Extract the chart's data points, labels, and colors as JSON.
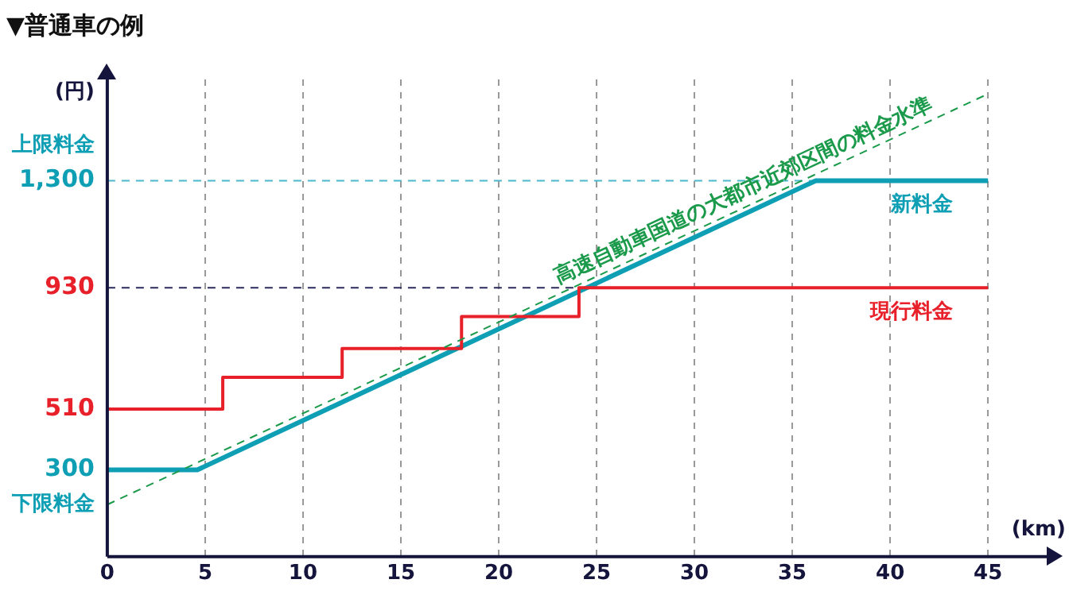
{
  "chart_data": {
    "type": "line",
    "title": "▼普通車の例",
    "xlabel": "(km)",
    "ylabel": "(円)",
    "xlim": [
      0,
      48
    ],
    "xticks": [
      0,
      5,
      10,
      15,
      20,
      25,
      30,
      35,
      40,
      45
    ],
    "ylim": [
      0,
      1650
    ],
    "yticks": [
      300,
      510,
      930,
      {
        "value": 1300,
        "label": "1,300"
      }
    ],
    "grid": "x",
    "legend": false,
    "marker": "none",
    "series": [
      {
        "name": "高速自動車国道の大都市近郊区間の料金水準",
        "type": "line",
        "line_style": "dashed",
        "color": "#1a9a4a",
        "x": [
          0,
          45
        ],
        "values": [
          180,
          1600
        ]
      },
      {
        "name": "現行料金",
        "type": "step",
        "color": "#e8202a",
        "x": [
          0,
          5.9,
          12,
          18.1,
          24.1,
          45
        ],
        "values": [
          510,
          620,
          720,
          830,
          930,
          930
        ]
      },
      {
        "name": "新料金",
        "color": "#0e9fb5",
        "x": [
          0,
          4.6,
          36.2,
          45
        ],
        "values": [
          300,
          300,
          1300,
          1300
        ]
      }
    ],
    "ref_lines": [
      {
        "axis": "y",
        "value": 1300,
        "color": "#4ab8cc",
        "line_style": "dashed"
      },
      {
        "axis": "y",
        "value": 930,
        "color": "#2a2a5e",
        "line_style": "dashed"
      }
    ],
    "annotations": [
      "上限料金",
      "下限料金"
    ]
  }
}
